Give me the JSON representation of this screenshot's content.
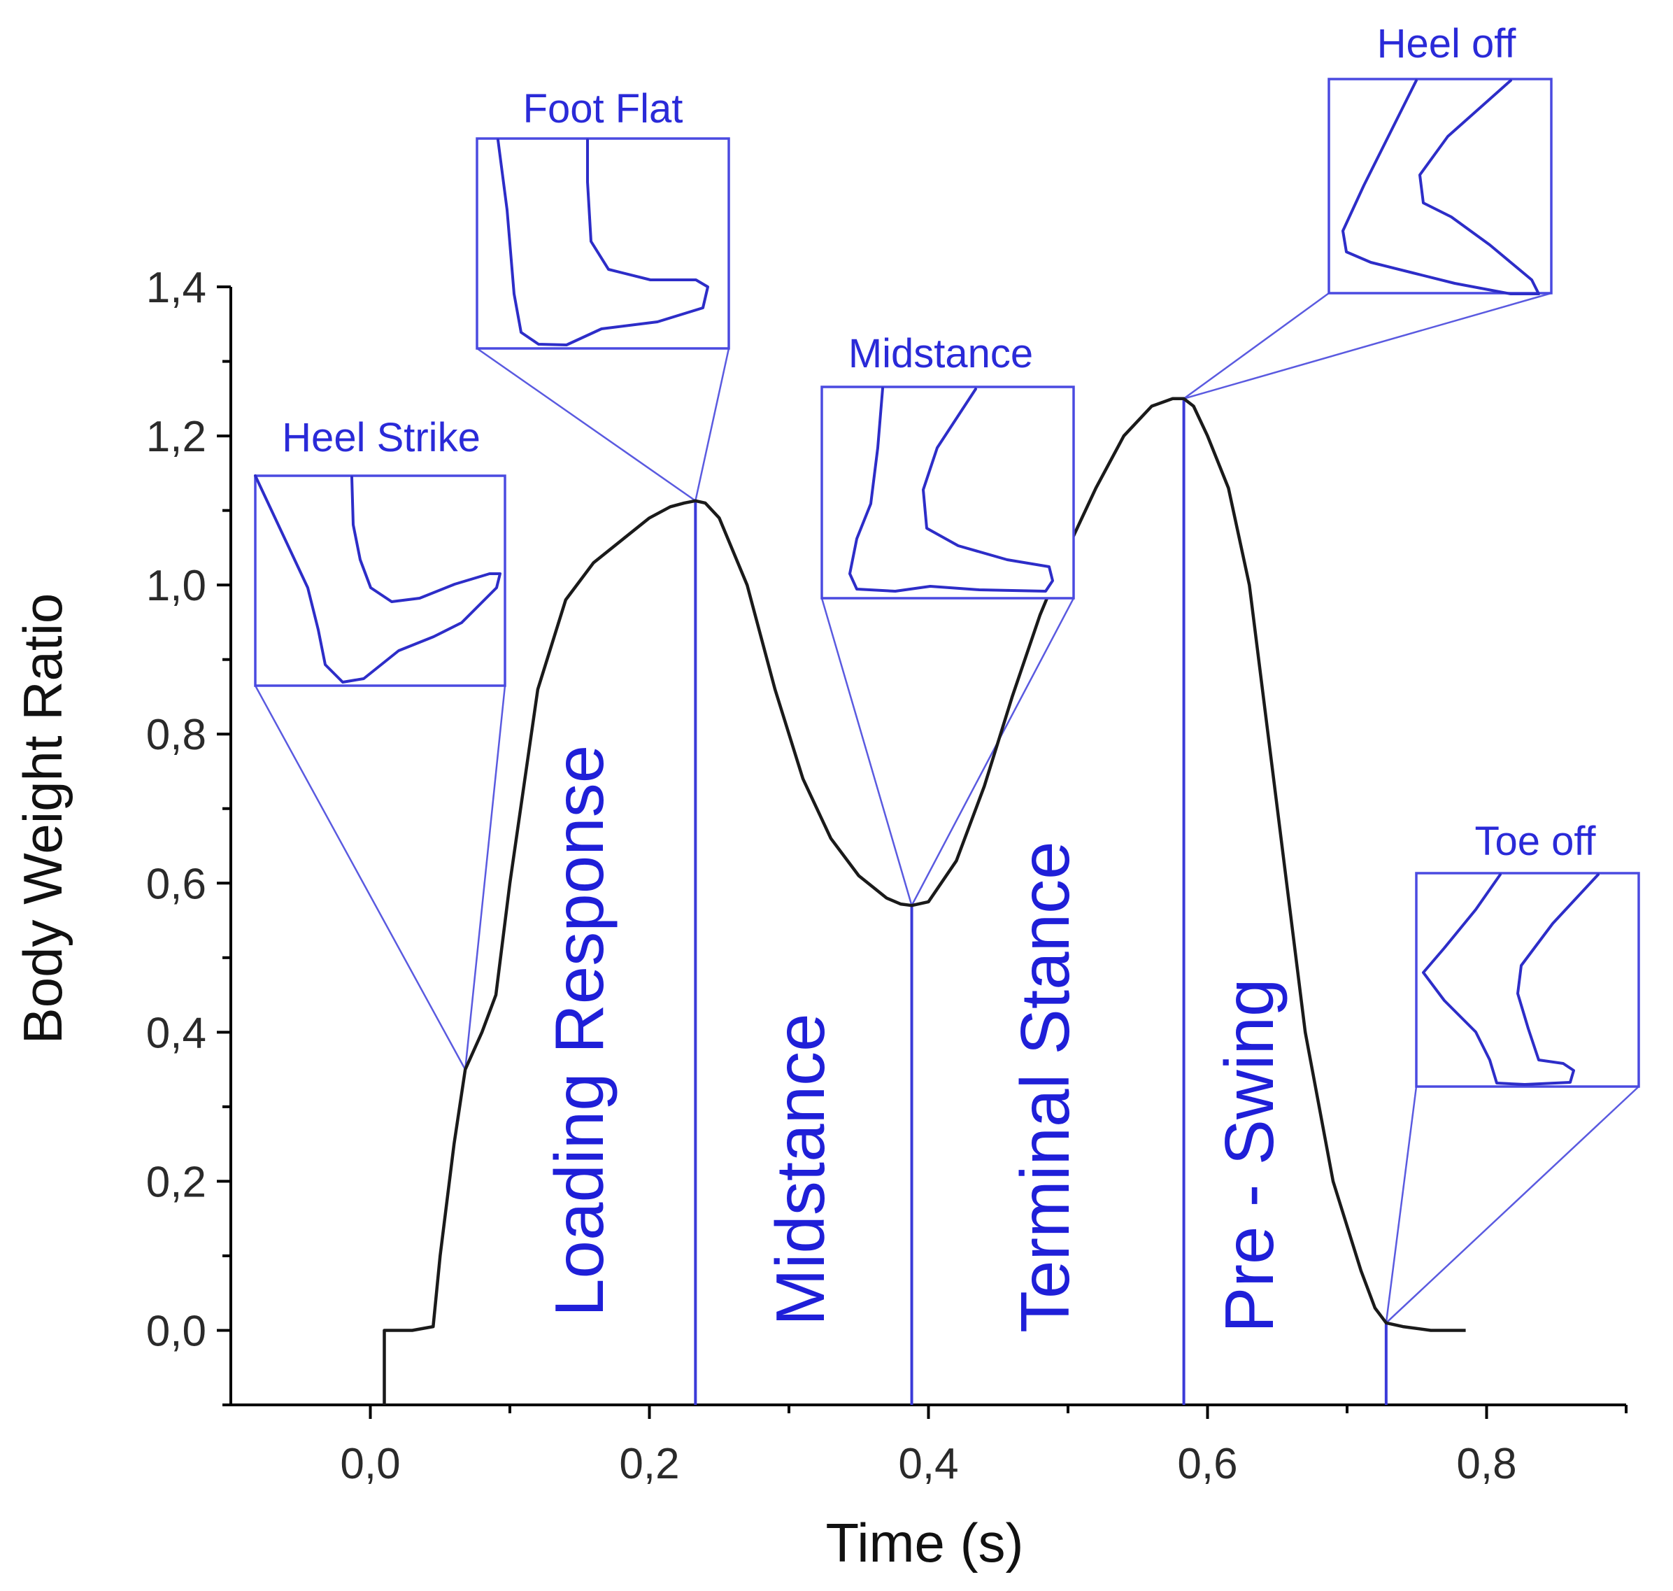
{
  "chart_data": {
    "type": "line",
    "title": "",
    "xlabel": "Time (s)",
    "ylabel": "Body Weight Ratio",
    "xlim": [
      -0.1,
      0.9
    ],
    "ylim": [
      -0.1,
      1.4
    ],
    "x_ticks": [
      0.0,
      0.2,
      0.4,
      0.6,
      0.8
    ],
    "x_tick_labels": [
      "0,0",
      "0,2",
      "0,4",
      "0,6",
      "0,8"
    ],
    "y_ticks": [
      0.0,
      0.2,
      0.4,
      0.6,
      0.8,
      1.0,
      1.2,
      1.4
    ],
    "y_tick_labels": [
      "0,0",
      "0,2",
      "0,4",
      "0,6",
      "0,8",
      "1,0",
      "1,2",
      "1,4"
    ],
    "grid": false,
    "series": [
      {
        "x": [
          0.01,
          0.01,
          0.03,
          0.045,
          0.05,
          0.06,
          0.068,
          0.08,
          0.09,
          0.1,
          0.12,
          0.14,
          0.16,
          0.18,
          0.2,
          0.215,
          0.225,
          0.233,
          0.24,
          0.25,
          0.27,
          0.29,
          0.31,
          0.33,
          0.35,
          0.37,
          0.38,
          0.388,
          0.4,
          0.42,
          0.44,
          0.46,
          0.48,
          0.5,
          0.52,
          0.54,
          0.56,
          0.575,
          0.583,
          0.59,
          0.6,
          0.615,
          0.63,
          0.65,
          0.67,
          0.69,
          0.71,
          0.72,
          0.728,
          0.74,
          0.76,
          0.785
        ],
        "y": [
          -0.1,
          0.0,
          0.0,
          0.005,
          0.1,
          0.25,
          0.35,
          0.4,
          0.45,
          0.6,
          0.86,
          0.98,
          1.03,
          1.06,
          1.09,
          1.105,
          1.11,
          1.113,
          1.11,
          1.09,
          1.0,
          0.86,
          0.74,
          0.66,
          0.61,
          0.58,
          0.572,
          0.57,
          0.575,
          0.63,
          0.73,
          0.85,
          0.96,
          1.05,
          1.13,
          1.2,
          1.24,
          1.25,
          1.25,
          1.24,
          1.2,
          1.13,
          1.0,
          0.7,
          0.4,
          0.2,
          0.08,
          0.03,
          0.01,
          0.005,
          0.0,
          0.0
        ]
      }
    ],
    "phase_markers": [
      {
        "x": 0.233,
        "top": 1.113
      },
      {
        "x": 0.388,
        "top": 0.57
      },
      {
        "x": 0.583,
        "top": 1.25
      },
      {
        "x": 0.728,
        "top": 0.01
      }
    ],
    "phases": [
      {
        "label": "Loading Response",
        "x": 0.16,
        "y": 0.0
      },
      {
        "label": "Midstance",
        "x": 0.32,
        "y": 0.0
      },
      {
        "label": "Terminal Stance",
        "x": 0.495,
        "y": 0.0
      },
      {
        "label": "Pre - Swing",
        "x": 0.645,
        "y": 0.0
      }
    ],
    "events": [
      {
        "label": "Heel Strike",
        "anchor": [
          0.068,
          0.35
        ]
      },
      {
        "label": "Foot Flat",
        "anchor": [
          0.233,
          1.113
        ]
      },
      {
        "label": "Midstance",
        "anchor": [
          0.388,
          0.57
        ]
      },
      {
        "label": "Heel off",
        "anchor": [
          0.583,
          1.25
        ]
      },
      {
        "label": "Toe off",
        "anchor": [
          0.728,
          0.01
        ]
      }
    ]
  }
}
